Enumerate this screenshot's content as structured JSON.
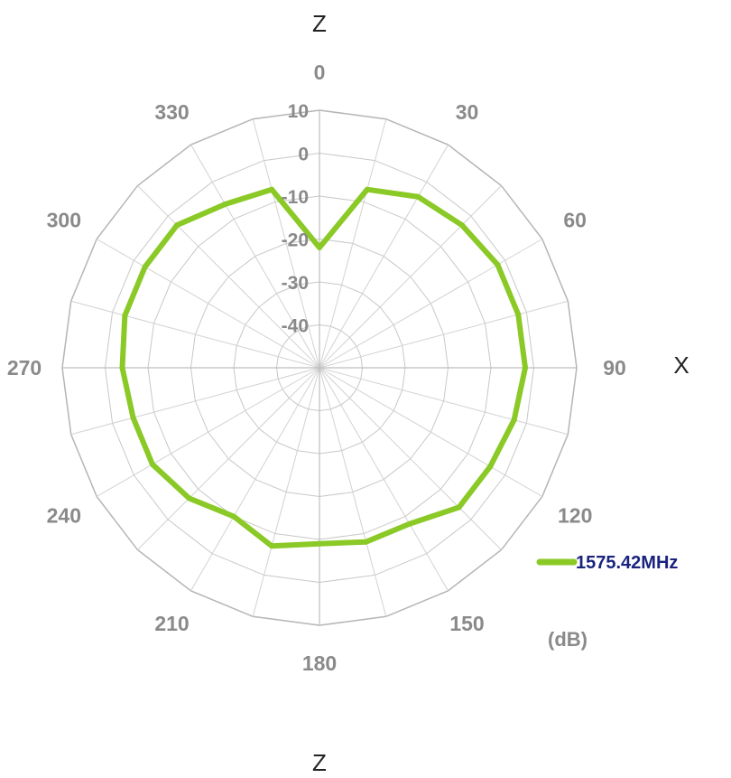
{
  "chart_data": {
    "type": "polar-line",
    "axis_letters": {
      "top": "Z",
      "right": "X",
      "bottom": "Z"
    },
    "unit": "(dB)",
    "angular_ticks": [
      0,
      30,
      60,
      90,
      120,
      150,
      180,
      210,
      240,
      270,
      300,
      330
    ],
    "radial_ticks": [
      10,
      0,
      -10,
      -20,
      -30,
      -40
    ],
    "radial_range": [
      -50,
      10
    ],
    "legend_position": "right",
    "series": [
      {
        "name": "1575.42MHz",
        "color": "#8ac926",
        "angles": [
          0,
          15,
          30,
          45,
          60,
          75,
          90,
          105,
          120,
          135,
          150,
          165,
          180,
          195,
          210,
          225,
          240,
          255,
          270,
          285,
          300,
          315,
          330,
          345
        ],
        "values": [
          -22,
          -7,
          -4,
          -3,
          -2,
          -2,
          -2,
          -3,
          -4,
          -4,
          -8,
          -8,
          -9,
          -7,
          -10,
          -7,
          -5,
          -5,
          -4,
          -3,
          -3,
          -3,
          -6,
          -7
        ]
      }
    ]
  }
}
